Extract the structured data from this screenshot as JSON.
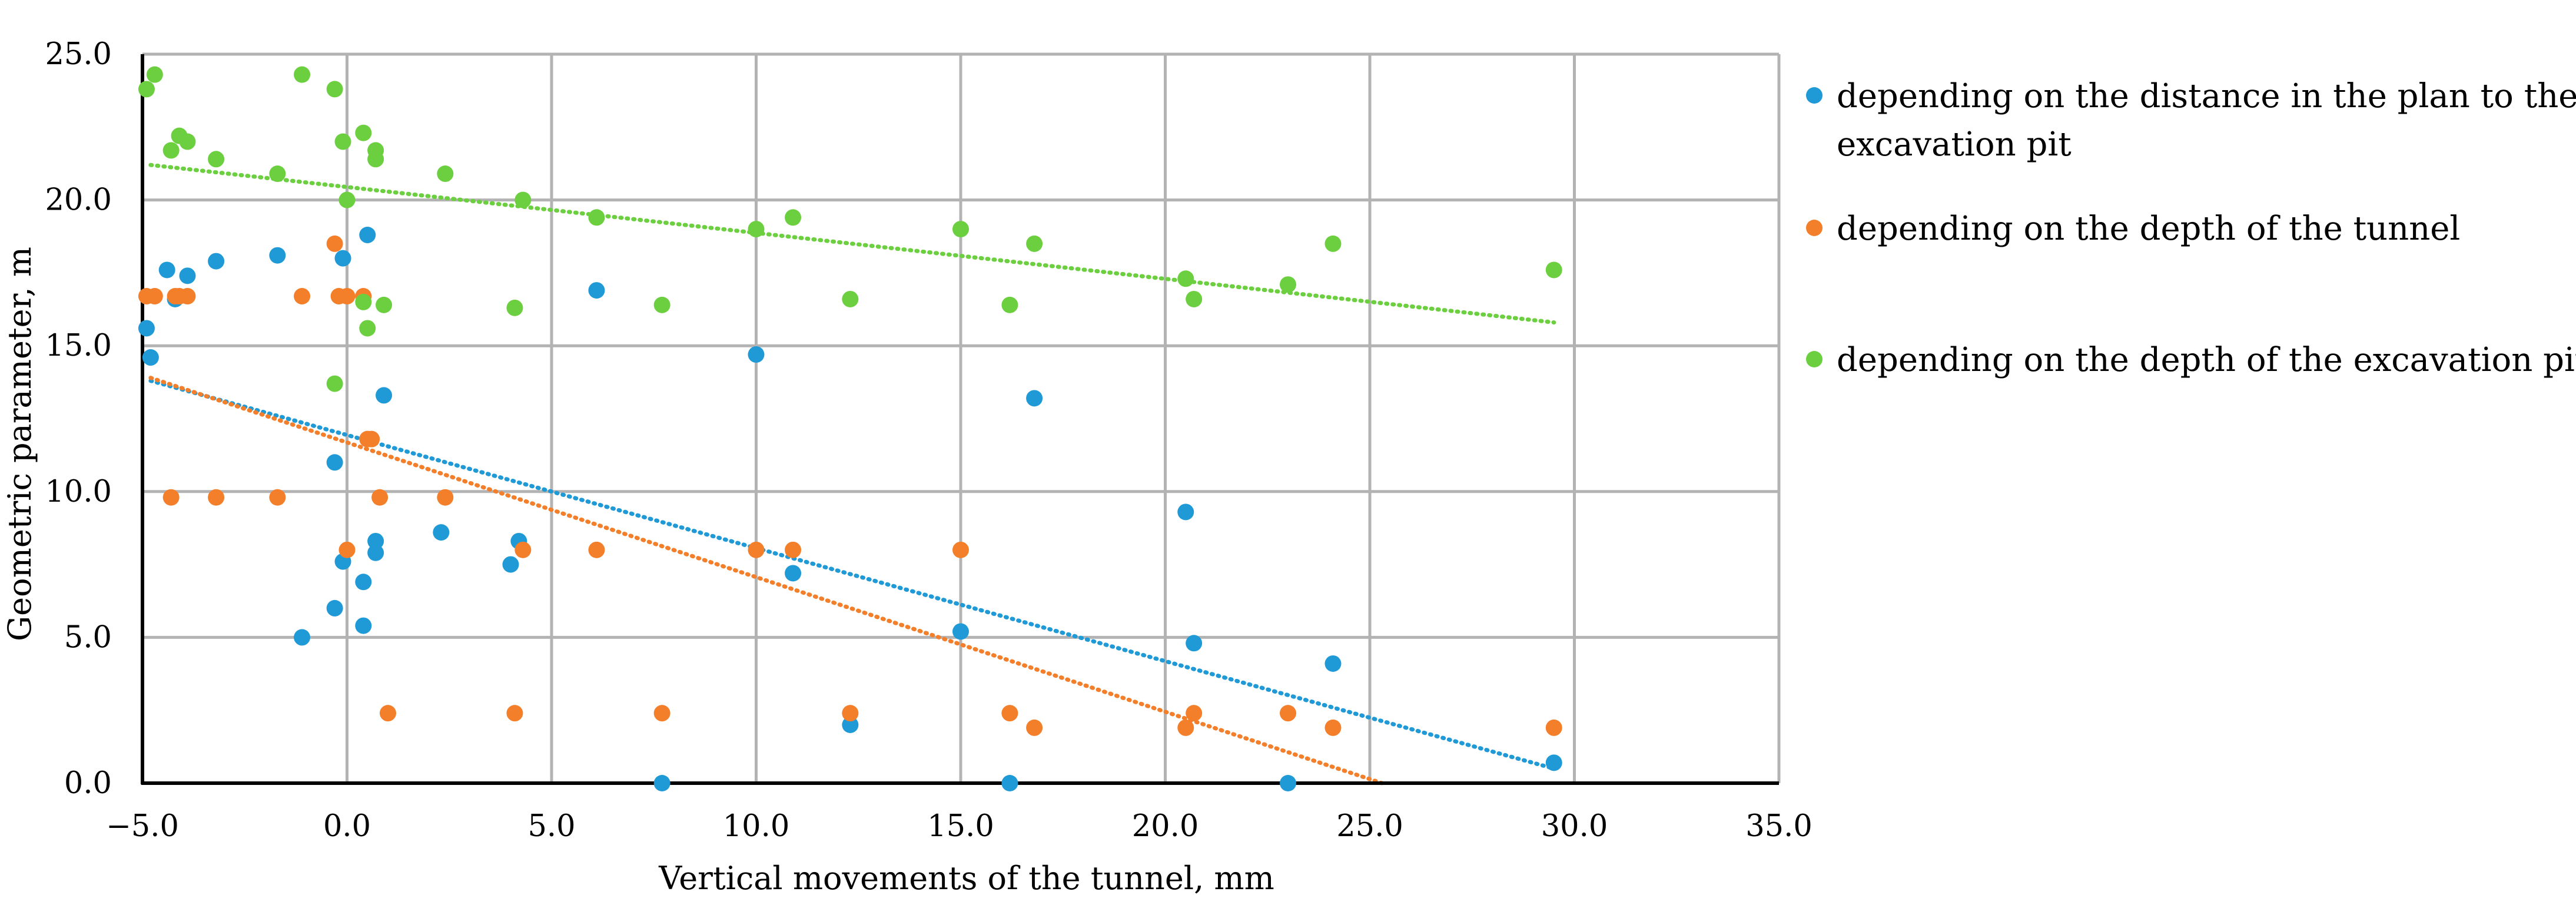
{
  "chart_data": {
    "type": "scatter",
    "title": "",
    "xlabel": "Vertical movements of the tunnel, mm",
    "ylabel": "Geometric parameter, m",
    "xlim": [
      -5.0,
      35.0
    ],
    "ylim": [
      0.0,
      25.0
    ],
    "x_ticks": [
      "−5.0",
      "0.0",
      "5.0",
      "10.0",
      "15.0",
      "20.0",
      "25.0",
      "30.0",
      "35.0"
    ],
    "y_ticks": [
      "0.0",
      "5.0",
      "10.0",
      "15.0",
      "20.0",
      "25.0"
    ],
    "x_tick_values": [
      -5,
      0,
      5,
      10,
      15,
      20,
      25,
      30,
      35
    ],
    "y_tick_values": [
      0,
      5,
      10,
      15,
      20,
      25
    ],
    "grid": true,
    "legend_position": "right",
    "series": [
      {
        "name": "depending on the distance in the plan to the excavation pit",
        "legend_lines": [
          "depending on the distance in the plan to the",
          "excavation pit"
        ],
        "color": "#1f9ad6",
        "trendline": {
          "type": "linear",
          "x_start": -4.8,
          "y_start": 13.8,
          "x_end": 29.5,
          "y_end": 0.5
        },
        "x": [
          -4.9,
          -4.8,
          -4.4,
          -4.2,
          -3.9,
          -3.2,
          -1.7,
          -1.1,
          -0.3,
          -0.3,
          -0.1,
          -0.1,
          0.4,
          0.4,
          0.5,
          0.7,
          0.7,
          0.9,
          2.3,
          4.0,
          4.2,
          6.1,
          7.7,
          10.0,
          10.9,
          12.3,
          15.0,
          16.2,
          16.8,
          20.5,
          20.7,
          23.0,
          24.1,
          29.5
        ],
        "y": [
          15.6,
          14.6,
          17.6,
          16.6,
          17.4,
          17.9,
          18.1,
          5.0,
          11.0,
          6.0,
          18.0,
          7.6,
          6.9,
          5.4,
          18.8,
          8.3,
          7.9,
          13.3,
          8.6,
          7.5,
          8.3,
          16.9,
          0.0,
          14.7,
          7.2,
          2.0,
          5.2,
          0.0,
          13.2,
          9.3,
          4.8,
          0.0,
          4.1,
          0.7
        ]
      },
      {
        "name": "depending on the depth of the tunnel",
        "legend_lines": [
          "depending on the depth of the tunnel"
        ],
        "color": "#f47f2b",
        "trendline": {
          "type": "linear",
          "x_start": -4.8,
          "y_start": 13.9,
          "x_end": 25.3,
          "y_end": 0.0
        },
        "x": [
          -4.9,
          -4.7,
          -4.2,
          -4.1,
          -3.9,
          -4.3,
          -3.2,
          -1.7,
          -1.1,
          -0.3,
          -0.2,
          0.0,
          0.0,
          0.4,
          0.5,
          0.6,
          0.8,
          1.0,
          2.4,
          4.1,
          4.3,
          6.1,
          7.7,
          10.0,
          10.9,
          12.3,
          15.0,
          16.2,
          16.8,
          20.5,
          20.7,
          23.0,
          24.1,
          29.5
        ],
        "y": [
          16.7,
          16.7,
          16.7,
          16.7,
          16.7,
          9.8,
          9.8,
          9.8,
          16.7,
          18.5,
          16.7,
          16.7,
          8.0,
          16.7,
          11.8,
          11.8,
          9.8,
          2.4,
          9.8,
          2.4,
          8.0,
          8.0,
          2.4,
          8.0,
          8.0,
          2.4,
          8.0,
          2.4,
          1.9,
          1.9,
          2.4,
          2.4,
          1.9,
          1.9
        ]
      },
      {
        "name": "depending on the depth of the excavation pit",
        "legend_lines": [
          "depending on the depth of the excavation pit"
        ],
        "color": "#6ccf3f",
        "trendline": {
          "type": "linear",
          "x_start": -4.8,
          "y_start": 21.2,
          "x_end": 29.5,
          "y_end": 15.8
        },
        "x": [
          -4.9,
          -4.7,
          -4.3,
          -4.1,
          -3.9,
          -3.2,
          -1.7,
          -1.1,
          -0.3,
          -0.3,
          -0.1,
          0.0,
          0.4,
          0.4,
          0.5,
          0.7,
          0.7,
          0.9,
          2.4,
          4.1,
          4.3,
          6.1,
          7.7,
          10.0,
          10.9,
          12.3,
          15.0,
          16.2,
          16.8,
          20.5,
          20.7,
          23.0,
          24.1,
          29.5
        ],
        "y": [
          23.8,
          24.3,
          21.7,
          22.2,
          22.0,
          21.4,
          20.9,
          24.3,
          13.7,
          23.8,
          22.0,
          20.0,
          22.3,
          16.5,
          15.6,
          21.7,
          21.4,
          16.4,
          20.9,
          16.3,
          20.0,
          19.4,
          16.4,
          19.0,
          19.4,
          16.6,
          19.0,
          16.4,
          18.5,
          17.3,
          16.6,
          17.1,
          18.5,
          17.6
        ]
      }
    ]
  }
}
